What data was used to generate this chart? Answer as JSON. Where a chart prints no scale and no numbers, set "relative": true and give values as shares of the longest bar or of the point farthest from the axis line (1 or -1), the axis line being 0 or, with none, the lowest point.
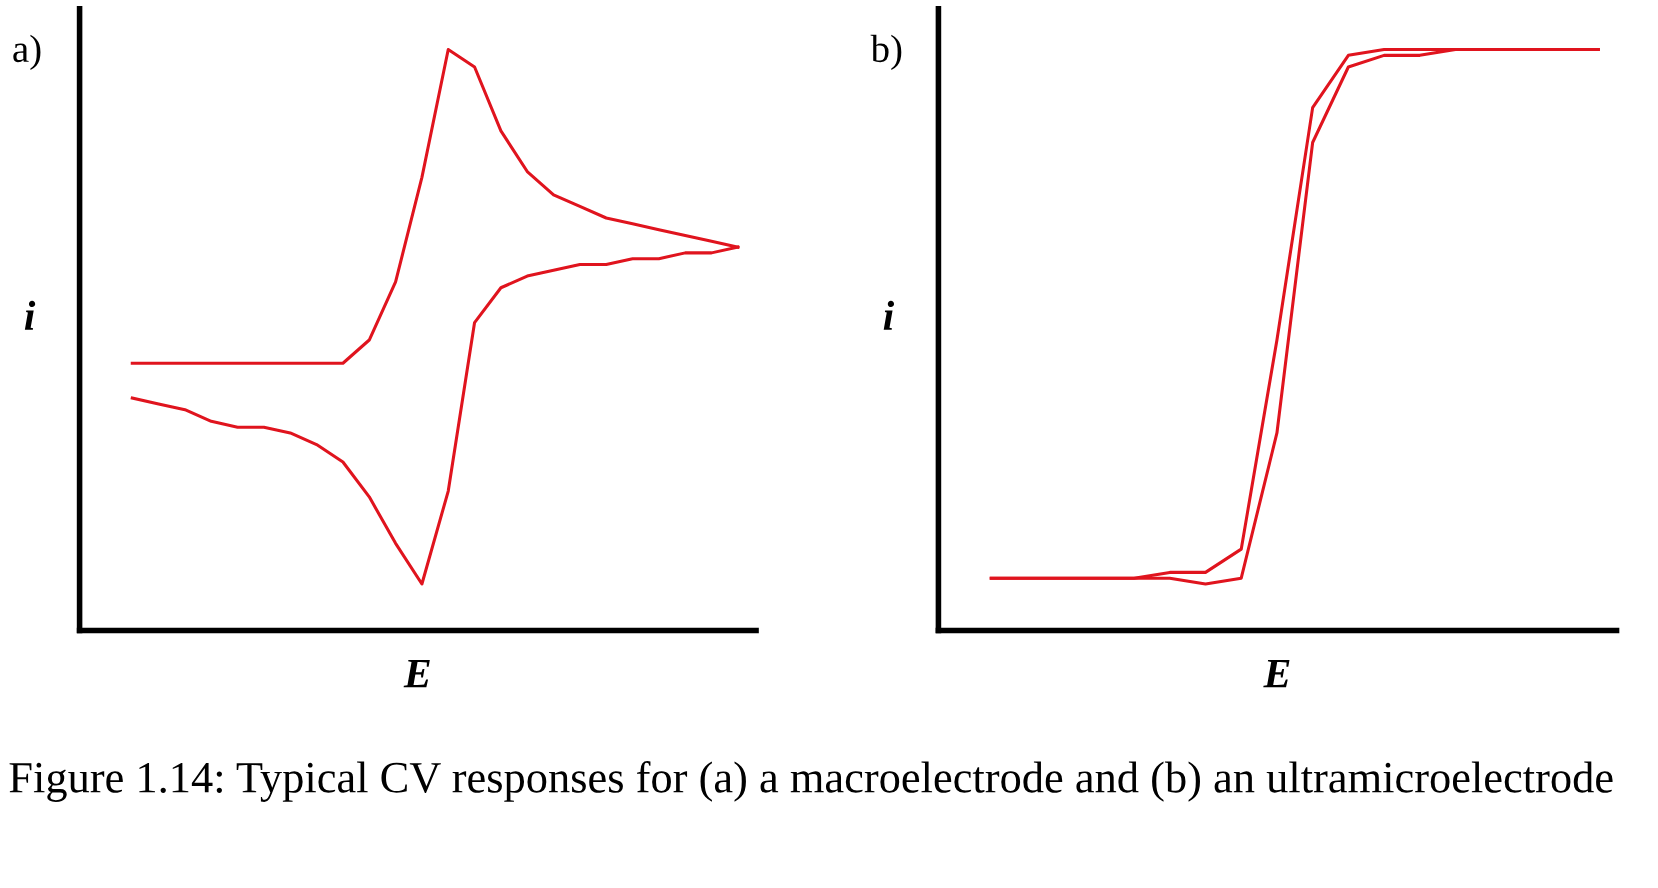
{
  "chart_data": [
    {
      "type": "line",
      "title": "a)",
      "xlabel": "E",
      "ylabel": "i",
      "relative": true,
      "categories": [
        null,
        null,
        null,
        null,
        null,
        null,
        null,
        null,
        null,
        null,
        null,
        null,
        null,
        null,
        null,
        null,
        null,
        null,
        null,
        null,
        null,
        null,
        null,
        null
      ],
      "annotations": [
        "Figure 1.14: Typical CV responses for (a) a macroelectrode and (b) an ultramicroelectrode"
      ],
      "series": [
        {
          "color": "#e0141e",
          "values": [
            0.46,
            0.46,
            0.46,
            0.46,
            0.46,
            0.46,
            0.46,
            0.46,
            0.46,
            0.5,
            0.6,
            0.78,
            1.0,
            0.97,
            0.86,
            0.79,
            0.75,
            0.73,
            0.71,
            0.7,
            0.69,
            0.68,
            0.67,
            0.66
          ]
        },
        {
          "color": "#e0141e",
          "values": [
            0.4,
            0.39,
            0.38,
            0.36,
            0.35,
            0.35,
            0.34,
            0.32,
            0.29,
            0.23,
            0.15,
            0.08,
            0.24,
            0.53,
            0.59,
            0.61,
            0.62,
            0.63,
            0.63,
            0.64,
            0.64,
            0.65,
            0.65,
            0.66
          ]
        }
      ]
    },
    {
      "type": "line",
      "title": "b)",
      "xlabel": "E",
      "ylabel": "i",
      "relative": true,
      "categories": [
        null,
        null,
        null,
        null,
        null,
        null,
        null,
        null,
        null,
        null,
        null,
        null,
        null,
        null,
        null,
        null,
        null,
        null
      ],
      "series": [
        {
          "color": "#e0141e",
          "values": [
            0.09,
            0.09,
            0.09,
            0.09,
            0.09,
            0.1,
            0.1,
            0.14,
            0.5,
            0.9,
            0.99,
            1.0,
            1.0,
            1.0,
            1.0,
            1.0,
            1.0,
            1.0
          ]
        },
        {
          "color": "#e0141e",
          "values": [
            0.09,
            0.09,
            0.09,
            0.09,
            0.09,
            0.09,
            0.08,
            0.09,
            0.34,
            0.84,
            0.97,
            0.99,
            0.99,
            1.0,
            1.0,
            1.0,
            1.0,
            1.0
          ]
        }
      ]
    }
  ]
}
